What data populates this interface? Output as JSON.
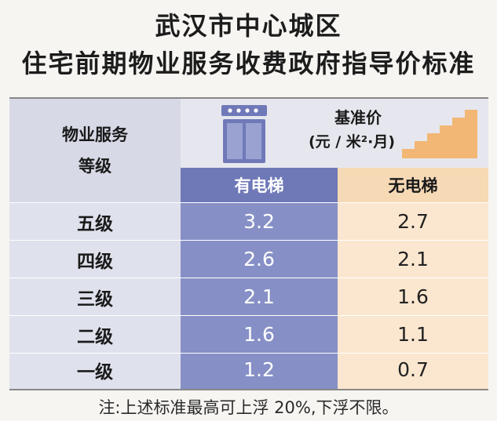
{
  "title_line1": "武汉市中心城区",
  "title_line2": "住宅前期物业服务收费政府指导价标准",
  "table": {
    "row_header_line1": "物业服务",
    "row_header_line2": "等级",
    "unit_title": "基准价",
    "unit_sub": "(元 / 米²·月)",
    "col_elevator": "有电梯",
    "col_no_elevator": "无电梯",
    "rows": [
      {
        "level": "五级",
        "elevator": "3.2",
        "no_elevator": "2.7"
      },
      {
        "level": "四级",
        "elevator": "2.6",
        "no_elevator": "2.1"
      },
      {
        "level": "三级",
        "elevator": "2.1",
        "no_elevator": "1.6"
      },
      {
        "level": "二级",
        "elevator": "1.6",
        "no_elevator": "1.1"
      },
      {
        "level": "一级",
        "elevator": "1.2",
        "no_elevator": "0.7"
      }
    ]
  },
  "note": "注:上述标准最高可上浮 20%,下浮不限。",
  "colors": {
    "elevator_column": "#8690c6",
    "no_elevator_column": "#fbe7cf",
    "stairs_icon": "#f2b774"
  }
}
